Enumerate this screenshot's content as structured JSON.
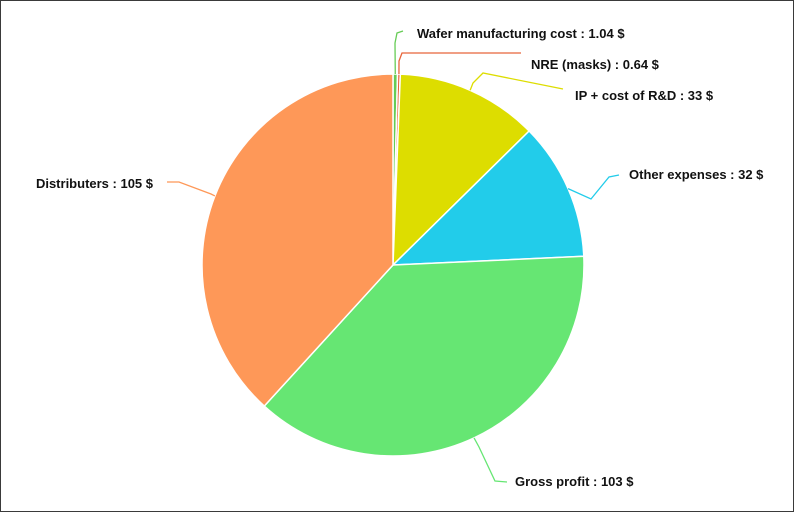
{
  "chart_data": {
    "type": "pie",
    "title": "",
    "unit": "$",
    "slices": [
      {
        "label": "Wafer manufacturing cost",
        "value": 1.04,
        "display": "Wafer manufacturing cost : 1.04 $",
        "color": "#66cc55"
      },
      {
        "label": "NRE (masks)",
        "value": 0.64,
        "display": "NRE (masks) : 0.64 $",
        "color": "#e8643a"
      },
      {
        "label": "IP + cost of R&D",
        "value": 33,
        "display": "IP + cost of R&D : 33 $",
        "color": "#dddd00"
      },
      {
        "label": "Other expenses",
        "value": 32,
        "display": "Other expenses : 32 $",
        "color": "#22ccea"
      },
      {
        "label": "Gross profit",
        "value": 103,
        "display": "Gross profit : 103 $",
        "color": "#66e673"
      },
      {
        "label": "Distributers",
        "value": 105,
        "display": "Distributers : 105 $",
        "color": "#fe9858"
      }
    ],
    "legend": "none",
    "data_labels": "outside-with-leader-lines"
  }
}
